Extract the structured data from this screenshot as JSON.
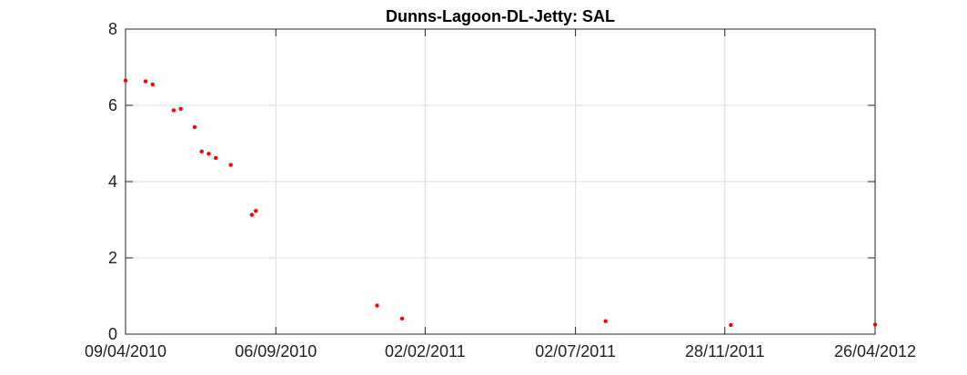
{
  "chart_data": {
    "type": "scatter",
    "title": "Dunns-Lagoon-DL-Jetty: SAL",
    "xlabel": "",
    "ylabel": "",
    "x_axis_type": "date",
    "xlim": [
      "2010-04-09",
      "2012-04-26"
    ],
    "ylim": [
      0,
      8
    ],
    "xticks": [
      "2010-04-09",
      "2010-09-06",
      "2011-02-02",
      "2011-07-02",
      "2011-11-28",
      "2012-04-26"
    ],
    "xtick_labels": [
      "09/04/2010",
      "06/09/2010",
      "02/02/2011",
      "02/07/2011",
      "28/11/2011",
      "26/04/2012"
    ],
    "yticks": [
      0,
      2,
      4,
      6,
      8
    ],
    "ytick_labels": [
      "0",
      "2",
      "4",
      "6",
      "8"
    ],
    "grid": true,
    "marker_color": "#ff0000",
    "series": [
      {
        "points": [
          {
            "x": "2010-04-09",
            "y": 6.65
          },
          {
            "x": "2010-04-29",
            "y": 6.63
          },
          {
            "x": "2010-05-06",
            "y": 6.55
          },
          {
            "x": "2010-05-27",
            "y": 5.87
          },
          {
            "x": "2010-06-03",
            "y": 5.91
          },
          {
            "x": "2010-06-17",
            "y": 5.43
          },
          {
            "x": "2010-06-24",
            "y": 4.79
          },
          {
            "x": "2010-07-01",
            "y": 4.73
          },
          {
            "x": "2010-07-08",
            "y": 4.62
          },
          {
            "x": "2010-07-23",
            "y": 4.44
          },
          {
            "x": "2010-08-13",
            "y": 3.13
          },
          {
            "x": "2010-08-17",
            "y": 3.23
          },
          {
            "x": "2010-12-16",
            "y": 0.75
          },
          {
            "x": "2011-01-10",
            "y": 0.41
          },
          {
            "x": "2011-08-01",
            "y": 0.34
          },
          {
            "x": "2011-12-04",
            "y": 0.24
          },
          {
            "x": "2012-04-26",
            "y": 0.25
          }
        ]
      }
    ]
  }
}
